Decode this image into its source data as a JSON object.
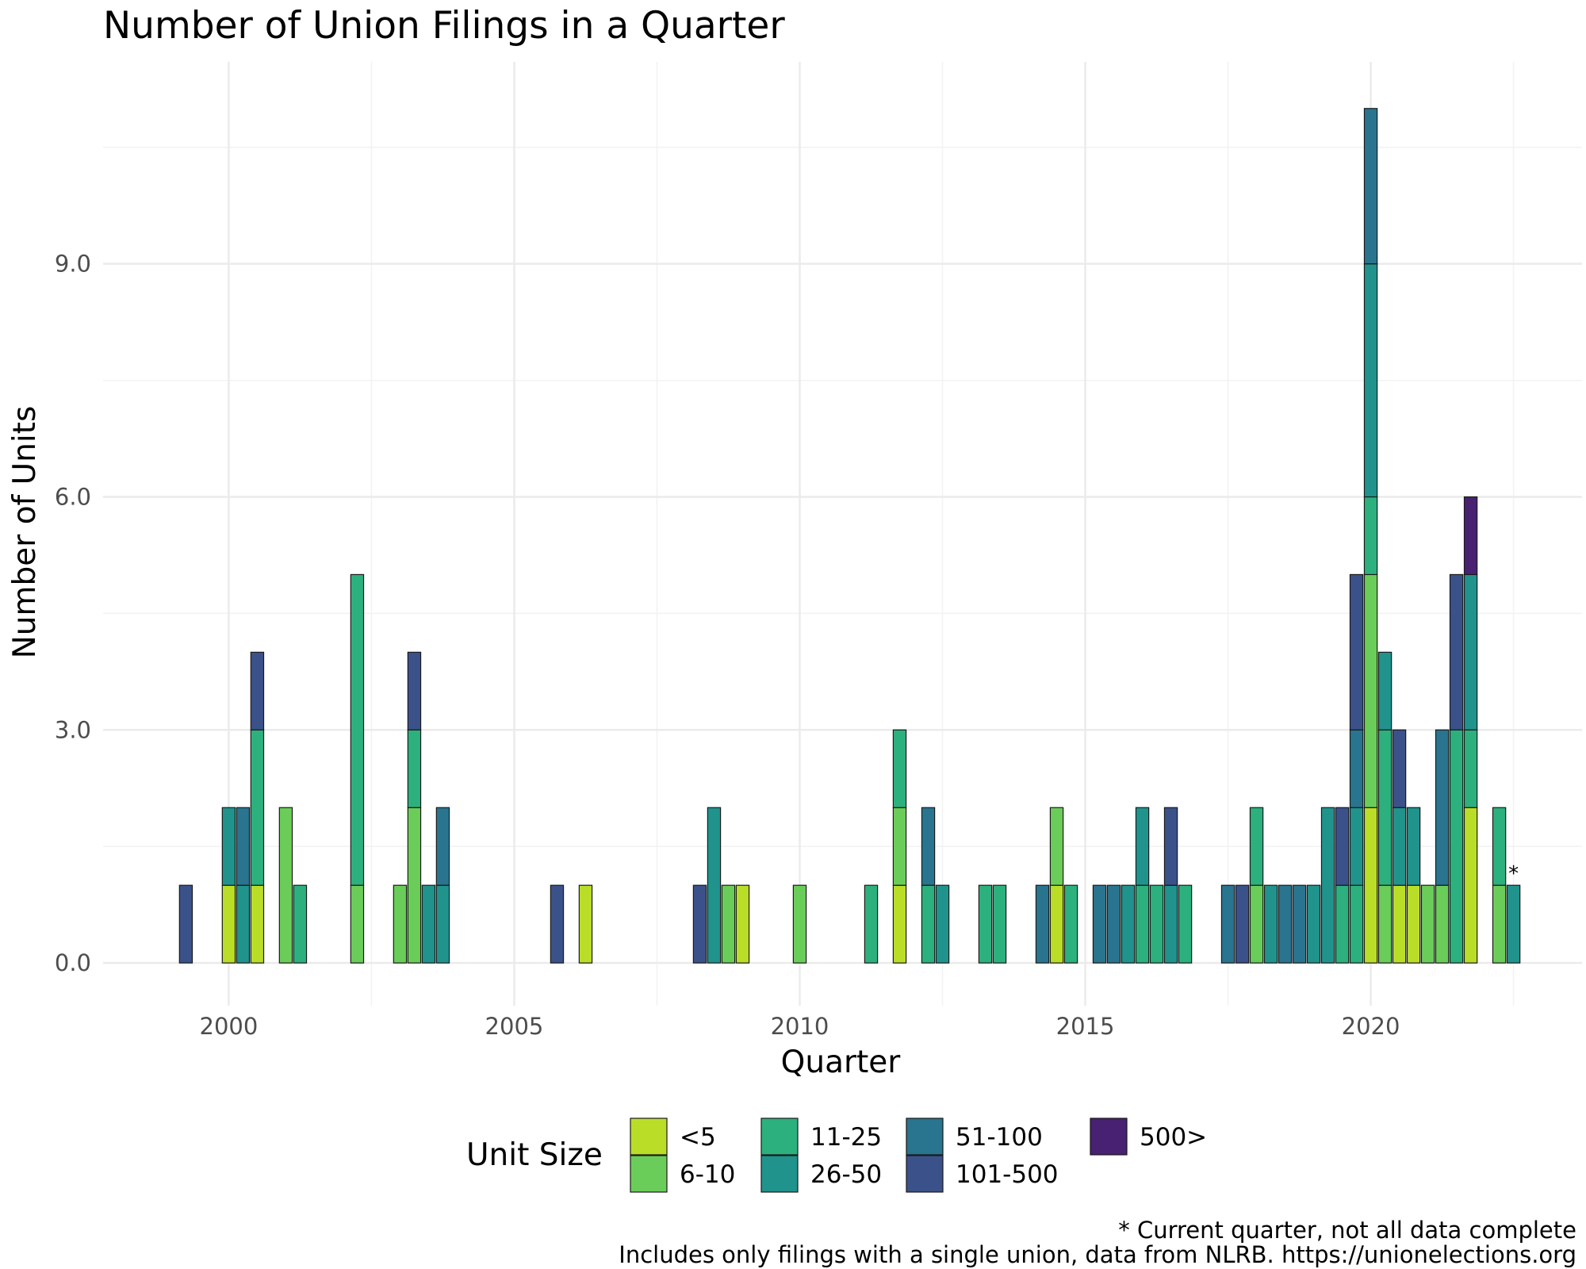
{
  "chart_data": {
    "type": "bar",
    "stacked": true,
    "title": "Number of Union Filings in a Quarter",
    "xlabel": "Quarter",
    "ylabel": "Number of Units",
    "xlim": [
      1997.8,
      2023.7
    ],
    "ylim": [
      -0.55,
      11.6
    ],
    "x_ticks": [
      2000,
      2005,
      2010,
      2015,
      2020
    ],
    "x_tick_labels": [
      "2000",
      "2005",
      "2010",
      "2015",
      "2020"
    ],
    "y_ticks": [
      0,
      3,
      6,
      9
    ],
    "y_tick_labels": [
      "0.0",
      "3.0",
      "6.0",
      "9.0"
    ],
    "grid": true,
    "legend": {
      "title": "Unit Size",
      "position": "bottom",
      "entries": [
        {
          "key": "lt5",
          "label": "<5",
          "color": "#BADE28"
        },
        {
          "key": "s6_10",
          "label": "6-10",
          "color": "#6BCD59"
        },
        {
          "key": "s11_25",
          "label": "11-25",
          "color": "#2CB17E"
        },
        {
          "key": "s26_50",
          "label": "26-50",
          "color": "#20938C"
        },
        {
          "key": "s51_100",
          "label": "51-100",
          "color": "#29748E"
        },
        {
          "key": "s101_500",
          "label": "101-500",
          "color": "#3B518A"
        },
        {
          "key": "s500p",
          "label": "500>",
          "color": "#482173"
        }
      ]
    },
    "stack_order": [
      "lt5",
      "s6_10",
      "s11_25",
      "s26_50",
      "s51_100",
      "s101_500",
      "s500p"
    ],
    "bars": [
      {
        "x": 1999.25,
        "s101_500": 1
      },
      {
        "x": 2000.0,
        "lt5": 1,
        "s26_50": 1
      },
      {
        "x": 2000.25,
        "s26_50": 1,
        "s51_100": 1
      },
      {
        "x": 2000.5,
        "lt5": 1,
        "s11_25": 2,
        "s101_500": 1
      },
      {
        "x": 2001.0,
        "s6_10": 2
      },
      {
        "x": 2001.25,
        "s11_25": 1
      },
      {
        "x": 2002.25,
        "s6_10": 1,
        "s11_25": 4
      },
      {
        "x": 2003.0,
        "s6_10": 1
      },
      {
        "x": 2003.25,
        "s6_10": 2,
        "s11_25": 1,
        "s101_500": 1
      },
      {
        "x": 2003.5,
        "s26_50": 1
      },
      {
        "x": 2003.75,
        "s26_50": 1,
        "s51_100": 1
      },
      {
        "x": 2005.75,
        "s101_500": 1
      },
      {
        "x": 2006.25,
        "lt5": 1
      },
      {
        "x": 2008.25,
        "s101_500": 1
      },
      {
        "x": 2008.5,
        "s26_50": 2
      },
      {
        "x": 2008.75,
        "s6_10": 1
      },
      {
        "x": 2009.0,
        "lt5": 1
      },
      {
        "x": 2010.0,
        "s6_10": 1
      },
      {
        "x": 2011.25,
        "s11_25": 1
      },
      {
        "x": 2011.75,
        "lt5": 1,
        "s6_10": 1,
        "s11_25": 1
      },
      {
        "x": 2012.25,
        "s11_25": 1,
        "s51_100": 1
      },
      {
        "x": 2012.5,
        "s26_50": 1
      },
      {
        "x": 2013.25,
        "s11_25": 1
      },
      {
        "x": 2013.5,
        "s11_25": 1
      },
      {
        "x": 2014.25,
        "s51_100": 1
      },
      {
        "x": 2014.5,
        "lt5": 1,
        "s6_10": 1
      },
      {
        "x": 2014.75,
        "s11_25": 1
      },
      {
        "x": 2015.25,
        "s51_100": 1
      },
      {
        "x": 2015.5,
        "s51_100": 1
      },
      {
        "x": 2015.75,
        "s26_50": 1
      },
      {
        "x": 2016.0,
        "s11_25": 1,
        "s26_50": 1
      },
      {
        "x": 2016.25,
        "s11_25": 1
      },
      {
        "x": 2016.5,
        "s26_50": 1,
        "s101_500": 1
      },
      {
        "x": 2016.75,
        "s11_25": 1
      },
      {
        "x": 2017.5,
        "s51_100": 1
      },
      {
        "x": 2017.75,
        "s101_500": 1
      },
      {
        "x": 2018.0,
        "s6_10": 1,
        "s11_25": 1
      },
      {
        "x": 2018.25,
        "s26_50": 1
      },
      {
        "x": 2018.5,
        "s51_100": 1
      },
      {
        "x": 2018.75,
        "s51_100": 1
      },
      {
        "x": 2019.0,
        "s26_50": 1
      },
      {
        "x": 2019.25,
        "s26_50": 2
      },
      {
        "x": 2019.5,
        "s11_25": 1,
        "s101_500": 1
      },
      {
        "x": 2019.75,
        "s11_25": 1,
        "s26_50": 1,
        "s51_100": 1,
        "s101_500": 2
      },
      {
        "x": 2020.0,
        "lt5": 2,
        "s6_10": 3,
        "s11_25": 1,
        "s26_50": 3,
        "s51_100": 2
      },
      {
        "x": 2020.25,
        "s6_10": 1,
        "s11_25": 2,
        "s26_50": 1
      },
      {
        "x": 2020.5,
        "lt5": 1,
        "s26_50": 1,
        "s101_500": 1
      },
      {
        "x": 2020.75,
        "lt5": 1,
        "s26_50": 1
      },
      {
        "x": 2021.0,
        "s6_10": 1
      },
      {
        "x": 2021.25,
        "s6_10": 1,
        "s51_100": 2
      },
      {
        "x": 2021.5,
        "s11_25": 3,
        "s101_500": 2
      },
      {
        "x": 2021.75,
        "lt5": 2,
        "s11_25": 1,
        "s26_50": 2,
        "s500p": 1
      },
      {
        "x": 2022.25,
        "s6_10": 1,
        "s11_25": 1
      },
      {
        "x": 2022.5,
        "s26_50": 1
      }
    ],
    "annotations": [
      {
        "text": "*",
        "x": 2022.5,
        "y": 1
      }
    ],
    "captions": [
      "* Current quarter, not all data complete",
      "Includes only filings with a single union, data from NLRB. https://unionelections.org"
    ]
  }
}
